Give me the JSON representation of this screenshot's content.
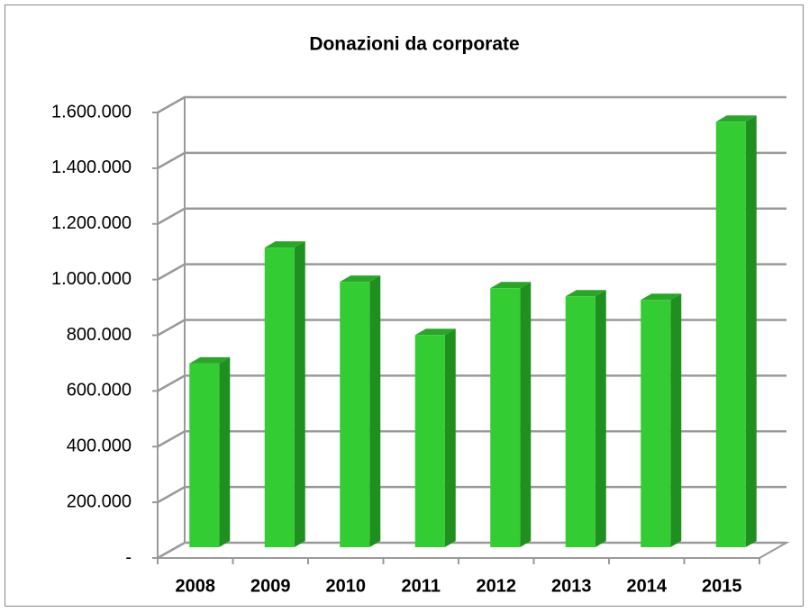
{
  "chart_data": {
    "type": "bar",
    "title": "Donazioni da corporate",
    "categories": [
      "2008",
      "2009",
      "2010",
      "2011",
      "2012",
      "2013",
      "2014",
      "2015"
    ],
    "values": [
      660000,
      1076000,
      953000,
      762000,
      930000,
      901000,
      888000,
      1528000
    ],
    "color": "#33cc33",
    "ylim": [
      0,
      1600000
    ],
    "yticks": [
      {
        "value": 0,
        "label": "-"
      },
      {
        "value": 200000,
        "label": "200.000"
      },
      {
        "value": 400000,
        "label": "400.000"
      },
      {
        "value": 600000,
        "label": "600.000"
      },
      {
        "value": 800000,
        "label": "800.000"
      },
      {
        "value": 1000000,
        "label": "1.000.000"
      },
      {
        "value": 1200000,
        "label": "1.200.000"
      },
      {
        "value": 1400000,
        "label": "1.400.000"
      },
      {
        "value": 1600000,
        "label": "1.600.000"
      }
    ],
    "grid": true
  }
}
